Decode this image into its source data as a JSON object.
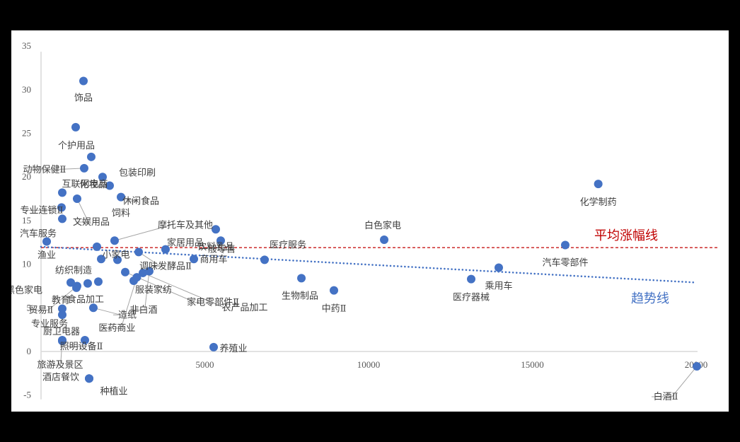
{
  "chart_data": {
    "type": "scatter",
    "title": "",
    "xlabel": "",
    "ylabel": "",
    "xlim": [
      0,
      20000
    ],
    "ylim": [
      -5,
      35
    ],
    "x_ticks": [
      "5000",
      "10000",
      "15000",
      "20000"
    ],
    "y_ticks": [
      "-5",
      "0",
      "5",
      "10",
      "15",
      "20",
      "25",
      "30",
      "35"
    ],
    "grid": false,
    "legend": null,
    "marker_color": "#4472c4",
    "average_line": {
      "label": "平均涨幅线",
      "y": 11.9,
      "color": "#c00000",
      "style": "dashed"
    },
    "trend_line": {
      "label": "趋势线",
      "x": [
        0,
        20000
      ],
      "y": [
        12.0,
        7.9
      ],
      "color": "#4472c4",
      "style": "dotted"
    },
    "points": [
      {
        "label": "饰品",
        "x": 1296,
        "y": 31.0
      },
      {
        "label": "个护用品",
        "x": 1058,
        "y": 25.7
      },
      {
        "label": "",
        "x": 1533,
        "y": 22.3
      },
      {
        "label": "动物保健Ⅱ",
        "x": 1317,
        "y": 21.0
      },
      {
        "label": "化妆品",
        "x": 1879,
        "y": 20.0
      },
      {
        "label": "包装印刷",
        "x": 2095,
        "y": 19.0
      },
      {
        "label": "休闲食品",
        "x": 2441,
        "y": 17.7
      },
      {
        "label": "互联网电商",
        "x": 648,
        "y": 18.2
      },
      {
        "label": "文娱用品",
        "x": 1101,
        "y": 17.5
      },
      {
        "label": "专业连锁Ⅱ",
        "x": 626,
        "y": 16.5
      },
      {
        "label": "饲料",
        "x": 648,
        "y": 15.2
      },
      {
        "label": "汽车服务",
        "x": 173,
        "y": 12.6
      },
      {
        "label": "摩托车及其他",
        "x": 2246,
        "y": 12.7
      },
      {
        "label": "",
        "x": 1706,
        "y": 12.0
      },
      {
        "label": "调味发酵品Ⅱ",
        "x": 2981,
        "y": 11.4
      },
      {
        "label": "家居用品",
        "x": 3801,
        "y": 11.7
      },
      {
        "label": "饮料乳品",
        "x": 5335,
        "y": 14.0
      },
      {
        "label": "一般零售",
        "x": 5486,
        "y": 12.7
      },
      {
        "label": "商用车",
        "x": 4666,
        "y": 10.6
      },
      {
        "label": "医疗服务",
        "x": 6825,
        "y": 10.5
      },
      {
        "label": "渔业",
        "x": 1836,
        "y": 10.6
      },
      {
        "label": "小家电",
        "x": 2333,
        "y": 10.5
      },
      {
        "label": "家电零部件Ⅱ",
        "x": 2570,
        "y": 9.1
      },
      {
        "label": "农产品加工",
        "x": 3110,
        "y": 9.0
      },
      {
        "label": "纺织制造",
        "x": 1749,
        "y": 8.0
      },
      {
        "label": "服装家纺",
        "x": 2829,
        "y": 8.1
      },
      {
        "label": "非白酒",
        "x": 3304,
        "y": 9.2
      },
      {
        "label": "医药商业",
        "x": 2925,
        "y": 8.5
      },
      {
        "label": "黑色家电",
        "x": 907,
        "y": 7.9
      },
      {
        "label": "食品加工",
        "x": 1425,
        "y": 7.8
      },
      {
        "label": "",
        "x": 1080,
        "y": 7.3
      },
      {
        "label": "教育",
        "x": 648,
        "y": 4.9
      },
      {
        "label": "造纸",
        "x": 1598,
        "y": 5.0
      },
      {
        "label": "专业服务",
        "x": 648,
        "y": 4.2
      },
      {
        "label": "照明设备Ⅱ",
        "x": 1339,
        "y": 1.3
      },
      {
        "label": "厨卫电器",
        "x": 648,
        "y": 1.3
      },
      {
        "label": "贸易Ⅱ",
        "x": 1101,
        "y": 7.5
      },
      {
        "label": "旅游及景区",
        "x": 648,
        "y": 1.2
      },
      {
        "label": "酒店餐饮",
        "x": 1469,
        "y": -3.1
      },
      {
        "label": "种植业",
        "x": 1469,
        "y": -3.1
      },
      {
        "label": "养殖业",
        "x": 5270,
        "y": 0.5
      },
      {
        "label": "白色家电",
        "x": 10476,
        "y": 12.8
      },
      {
        "label": "生物制品",
        "x": 7949,
        "y": 8.4
      },
      {
        "label": "中药Ⅱ",
        "x": 8942,
        "y": 7.0
      },
      {
        "label": "化学制药",
        "x": 17012,
        "y": 19.2
      },
      {
        "label": "汽车零部件",
        "x": 16004,
        "y": 12.2
      },
      {
        "label": "乘用车",
        "x": 13974,
        "y": 9.6
      },
      {
        "label": "医疗器械",
        "x": 13132,
        "y": 8.3
      },
      {
        "label": "白酒Ⅱ",
        "x": 20022,
        "y": -1.7
      }
    ]
  }
}
